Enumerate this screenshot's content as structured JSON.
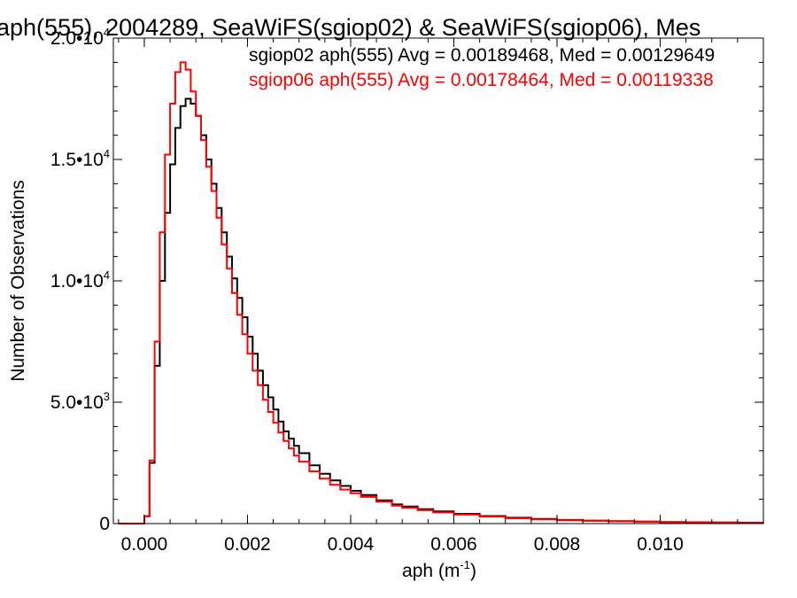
{
  "chart_data": {
    "type": "line",
    "title": "aph(555), 2004289, SeaWiFS(sgiop02) & SeaWiFS(sgiop06), Mes",
    "xlabel_base": "aph (m",
    "xlabel_sup": "-1",
    "xlabel_close": ")",
    "ylabel": "Number of Observations",
    "xlim": [
      -0.0006,
      0.012
    ],
    "ylim": [
      0,
      20000
    ],
    "xticks": [
      {
        "v": 0.0,
        "label": "0.000"
      },
      {
        "v": 0.002,
        "label": "0.002"
      },
      {
        "v": 0.004,
        "label": "0.004"
      },
      {
        "v": 0.006,
        "label": "0.006"
      },
      {
        "v": 0.008,
        "label": "0.008"
      },
      {
        "v": 0.01,
        "label": "0.010"
      }
    ],
    "yticks": [
      {
        "v": 0,
        "base": "0",
        "exp": ""
      },
      {
        "v": 5000,
        "base": "5.0•10",
        "exp": "3"
      },
      {
        "v": 10000,
        "base": "1.0•10",
        "exp": "4"
      },
      {
        "v": 15000,
        "base": "1.5•10",
        "exp": "4"
      },
      {
        "v": 20000,
        "base": "2.0•10",
        "exp": "4"
      }
    ],
    "grid": false,
    "legend_position": "top-right",
    "series": [
      {
        "name": "sgiop02 aph(555) Avg = 0.00189468, Med = 0.00129649",
        "color": "#000000",
        "x": [
          -0.0005,
          -0.0001,
          0.0,
          0.0001,
          0.0002,
          0.0003,
          0.0004,
          0.0005,
          0.0006,
          0.0007,
          0.0008,
          0.0009,
          0.001,
          0.0011,
          0.0012,
          0.0013,
          0.0014,
          0.0015,
          0.0016,
          0.0017,
          0.0018,
          0.0019,
          0.002,
          0.0021,
          0.0022,
          0.0023,
          0.0024,
          0.0025,
          0.0026,
          0.0027,
          0.0028,
          0.0029,
          0.003,
          0.0032,
          0.0034,
          0.0036,
          0.0038,
          0.004,
          0.0042,
          0.0045,
          0.0048,
          0.005,
          0.0053,
          0.0056,
          0.006,
          0.0065,
          0.007,
          0.0075,
          0.008,
          0.0085,
          0.009,
          0.0095,
          0.01,
          0.0105,
          0.011,
          0.0115,
          0.012
        ],
        "y": [
          0,
          0,
          300,
          2500,
          6500,
          10000,
          12800,
          14800,
          16300,
          17200,
          17500,
          17300,
          16800,
          16000,
          15000,
          14000,
          13000,
          12000,
          11000,
          10100,
          9300,
          8500,
          7700,
          7000,
          6300,
          5700,
          5200,
          4700,
          4200,
          3800,
          3500,
          3200,
          2900,
          2400,
          2050,
          1780,
          1550,
          1350,
          1180,
          960,
          790,
          700,
          590,
          500,
          400,
          310,
          240,
          190,
          150,
          120,
          100,
          80,
          65,
          55,
          45,
          35,
          30
        ]
      },
      {
        "name": "sgiop06 aph(555) Avg = 0.00178464, Med = 0.00119338",
        "color": "#ff0000",
        "x": [
          -0.0005,
          -0.0001,
          0.0,
          0.0001,
          0.0002,
          0.0003,
          0.0004,
          0.0005,
          0.0006,
          0.0007,
          0.0008,
          0.0009,
          0.001,
          0.0011,
          0.0012,
          0.0013,
          0.0014,
          0.0015,
          0.0016,
          0.0017,
          0.0018,
          0.0019,
          0.002,
          0.0021,
          0.0022,
          0.0023,
          0.0024,
          0.0025,
          0.0026,
          0.0027,
          0.0028,
          0.0029,
          0.003,
          0.0032,
          0.0034,
          0.0036,
          0.0038,
          0.004,
          0.0042,
          0.0045,
          0.0048,
          0.005,
          0.0053,
          0.0056,
          0.006,
          0.0065,
          0.007,
          0.0075,
          0.008,
          0.0085,
          0.009,
          0.0095,
          0.01,
          0.0105,
          0.011,
          0.0115,
          0.012
        ],
        "y": [
          0,
          0,
          300,
          2600,
          7500,
          12000,
          15200,
          17300,
          18600,
          19000,
          18700,
          17800,
          16800,
          15800,
          14700,
          13700,
          12600,
          11500,
          10500,
          9500,
          8600,
          7800,
          7000,
          6300,
          5700,
          5100,
          4600,
          4150,
          3750,
          3400,
          3100,
          2800,
          2550,
          2150,
          1850,
          1600,
          1400,
          1250,
          1100,
          900,
          740,
          650,
          550,
          460,
          370,
          290,
          220,
          175,
          140,
          115,
          95,
          75,
          60,
          50,
          40,
          32,
          28
        ]
      }
    ]
  }
}
